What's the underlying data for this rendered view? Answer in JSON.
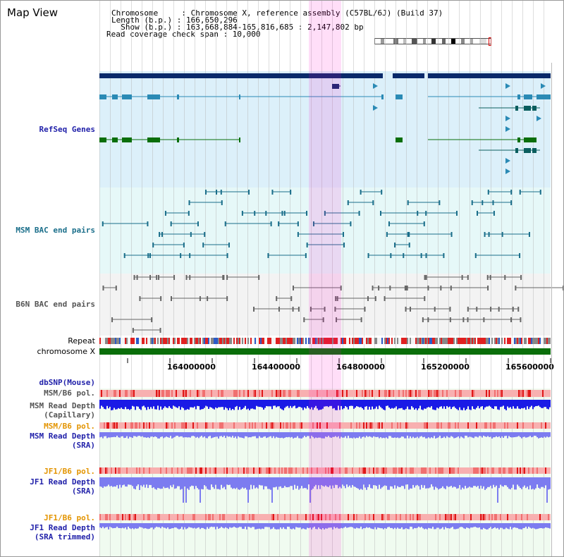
{
  "title": "Map View",
  "header": {
    "line1": "Chromosome     : Chromosome X, reference assembly (C57BL/6J) (Build 37)",
    "line2": "Length (b.p.) : 166,650,296",
    "line3": "  Show (b.p.) : 163,668,884-165,816,685 : 2,147,802 bp",
    "line4": "Read coverage check span : 10,000"
  },
  "tracks": {
    "refseq": "RefSeq Genes",
    "msm_bac": "MSM BAC end pairs",
    "b6n_bac": "B6N BAC end pairs",
    "repeat": "Repeat",
    "chromosome": "chromosome X",
    "dbsnp": "dbSNP(Mouse)",
    "msm_b6_pol": "MSM/B6 pol.",
    "msm_cap_1": "MSM Read Depth",
    "msm_cap_2": "(Capillary)",
    "msm_b6_pol2": "MSM/B6 pol.",
    "msm_sra_1": "MSM Read Depth",
    "msm_sra_2": "(SRA)",
    "jf1_b6_pol": "JF1/B6 pol.",
    "jf1_sra_1": "JF1 Read Depth",
    "jf1_sra_2": "(SRA)",
    "jf1_b6_pol2": "JF1/B6 pol.",
    "jf1_trim_1": "JF1 Read Depth",
    "jf1_trim_2": "(SRA trimmed)"
  },
  "axis": {
    "ticks": [
      "164000000",
      "164400000",
      "164800000",
      "165200000",
      "165600000"
    ]
  },
  "colors": {
    "refseq_bg": "#dcf0fa",
    "bac_bg": "#e6f8f8",
    "b6n_bg": "#f3f3f3",
    "highlight": "#ff00c8",
    "chrom": "#0a6e0a",
    "navy": "#0a2a6a",
    "teal": "#1a6e8a",
    "depth_blue": "#1a1ae6",
    "depth_violet": "#7c7cf0"
  }
}
